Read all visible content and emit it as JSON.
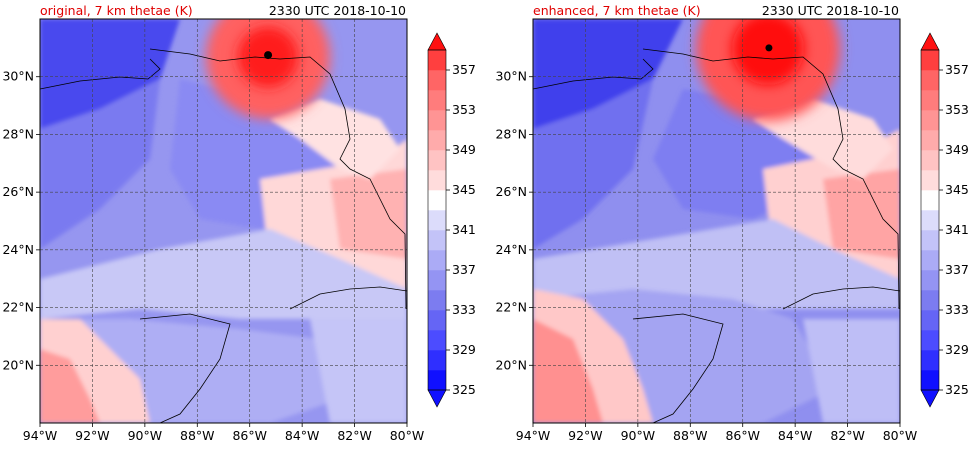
{
  "panels": [
    {
      "title_left": "original, 7 km thetae (K)",
      "title_right": "2330 UTC 2018-10-10",
      "storm_center": {
        "lon": -85.3,
        "lat": 30.75
      }
    },
    {
      "title_left": "enhanced, 7 km thetae (K)",
      "title_right": "2330 UTC 2018-10-10",
      "storm_center": {
        "lon": -85.0,
        "lat": 31.0
      }
    }
  ],
  "map": {
    "lon_range": [
      -94,
      -80
    ],
    "lat_range": [
      18,
      32
    ],
    "lon_ticks": [
      -94,
      -92,
      -90,
      -88,
      -86,
      -84,
      -82,
      -80
    ],
    "lon_tick_labels": [
      "94°W",
      "92°W",
      "90°W",
      "88°W",
      "86°W",
      "84°W",
      "82°W",
      "80°W"
    ],
    "lat_ticks": [
      20,
      22,
      24,
      26,
      28,
      30
    ],
    "lat_tick_labels": [
      "20°N",
      "22°N",
      "24°N",
      "26°N",
      "28°N",
      "30°N"
    ],
    "gridlines": "dashed"
  },
  "colorbar": {
    "levels": [
      325,
      327,
      329,
      331,
      333,
      335,
      337,
      339,
      341,
      343,
      345,
      347,
      349,
      351,
      353,
      355,
      357,
      359
    ],
    "tick_values": [
      325,
      329,
      333,
      337,
      341,
      345,
      349,
      353,
      357
    ],
    "tick_labels": [
      "325",
      "329",
      "333",
      "337",
      "341",
      "345",
      "349",
      "353",
      "357"
    ],
    "extend": "both",
    "colors": [
      "#1010ff",
      "#2f2fff",
      "#4c4cff",
      "#6565f5",
      "#7c7cf0",
      "#9494f3",
      "#ababf6",
      "#c3c3f8",
      "#dcdcfb",
      "#ffffff",
      "#ffdcdc",
      "#ffc3c3",
      "#ffabab",
      "#ff9494",
      "#ff7c7c",
      "#ff6565",
      "#ff3f3f",
      "#ff1010"
    ]
  },
  "title_color": "#e00000"
}
